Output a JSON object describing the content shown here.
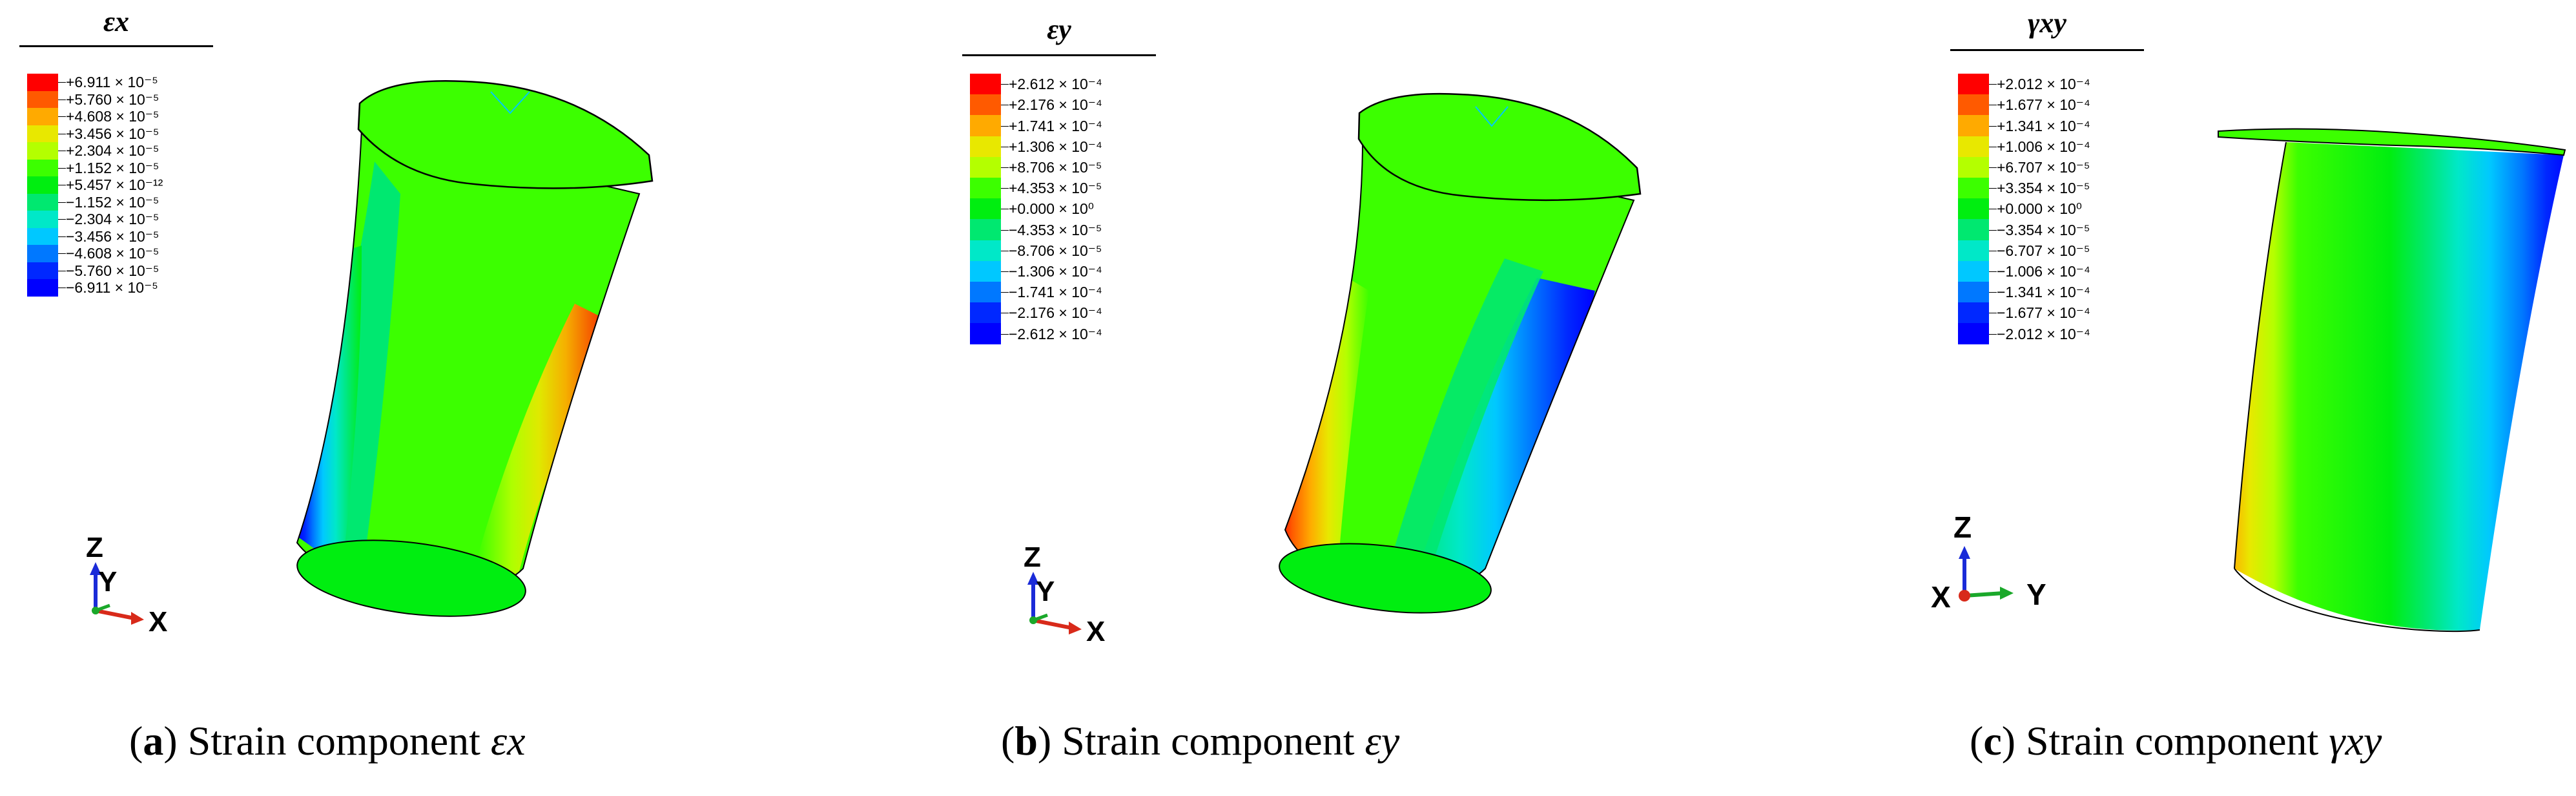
{
  "colors": [
    "#ff0000",
    "#ff5a00",
    "#ffaa00",
    "#e8e800",
    "#b4ff00",
    "#3cff00",
    "#00ee10",
    "#00e870",
    "#00e8c8",
    "#00c8ff",
    "#0078ff",
    "#0028ff",
    "#0000ff"
  ],
  "panels": [
    {
      "legend": {
        "title": "εx",
        "labels": [
          "+6.911 × 10⁻⁵",
          "+5.760 × 10⁻⁵",
          "+4.608 × 10⁻⁵",
          "+3.456 × 10⁻⁵",
          "+2.304 × 10⁻⁵",
          "+1.152 × 10⁻⁵",
          "+5.457 × 10⁻¹²",
          "−1.152 × 10⁻⁵",
          "−2.304 × 10⁻⁵",
          "−3.456 × 10⁻⁵",
          "−4.608 × 10⁻⁵",
          "−5.760 × 10⁻⁵",
          "−6.911 × 10⁻⁵"
        ]
      },
      "triad": {
        "vertical": "Z",
        "depth": "Y",
        "horizontal": "X"
      },
      "caption": {
        "letter": "a",
        "text": "Strain component ",
        "symbol": "εx"
      }
    },
    {
      "legend": {
        "title": "εy",
        "labels": [
          "+2.612 × 10⁻⁴",
          "+2.176 × 10⁻⁴",
          "+1.741 × 10⁻⁴",
          "+1.306 × 10⁻⁴",
          "+8.706 × 10⁻⁵",
          "+4.353 × 10⁻⁵",
          "+0.000 × 10⁰",
          "−4.353 × 10⁻⁵",
          "−8.706 × 10⁻⁵",
          "−1.306 × 10⁻⁴",
          "−1.741 × 10⁻⁴",
          "−2.176 × 10⁻⁴",
          "−2.612 × 10⁻⁴"
        ]
      },
      "triad": {
        "vertical": "Z",
        "depth": "Y",
        "horizontal": "X"
      },
      "caption": {
        "letter": "b",
        "text": "Strain component ",
        "symbol": "εy"
      }
    },
    {
      "legend": {
        "title": "γxy",
        "labels": [
          "+2.012 × 10⁻⁴",
          "+1.677 × 10⁻⁴",
          "+1.341 × 10⁻⁴",
          "+1.006 × 10⁻⁴",
          "+6.707 × 10⁻⁵",
          "+3.354 × 10⁻⁵",
          "+0.000 × 10⁰",
          "−3.354 × 10⁻⁵",
          "−6.707 × 10⁻⁵",
          "−1.006 × 10⁻⁴",
          "−1.341 × 10⁻⁴",
          "−1.677 × 10⁻⁴",
          "−2.012 × 10⁻⁴"
        ]
      },
      "triad": {
        "vertical": "Z",
        "depth": "X",
        "horizontal": "Y"
      },
      "caption": {
        "letter": "c",
        "text": "Strain component ",
        "symbol": "γxy"
      }
    }
  ]
}
